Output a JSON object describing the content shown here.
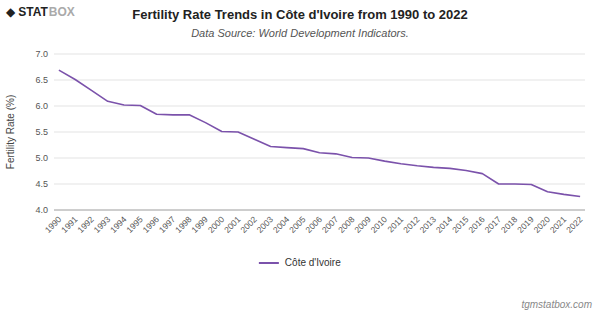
{
  "chart_data": {
    "type": "line",
    "title": "Fertility Rate Trends in Côte d'Ivoire from 1990 to 2022",
    "subtitle": "Data Source: World Development Indicators.",
    "y_label": "Fertility Rate (%)",
    "annotations": [
      "◆",
      "STAT",
      "BOX",
      "tgmstatbox.com"
    ],
    "x": [
      1990,
      1991,
      1992,
      1993,
      1994,
      1995,
      1996,
      1997,
      1998,
      1999,
      2000,
      2001,
      2002,
      2003,
      2004,
      2005,
      2006,
      2007,
      2008,
      2009,
      2010,
      2011,
      2012,
      2013,
      2014,
      2015,
      2016,
      2017,
      2018,
      2019,
      2020,
      2021,
      2022
    ],
    "series": [
      {
        "name": "Côte d'Ivoire",
        "color": "#7B52AB",
        "values": [
          6.69,
          6.51,
          6.3,
          6.09,
          6.02,
          6.01,
          5.84,
          5.83,
          5.83,
          5.68,
          5.51,
          5.5,
          5.36,
          5.22,
          5.2,
          5.18,
          5.1,
          5.08,
          5.01,
          5.0,
          4.94,
          4.89,
          4.85,
          4.82,
          4.8,
          4.76,
          4.7,
          4.5,
          4.5,
          4.49,
          4.35,
          4.3,
          4.26
        ]
      }
    ],
    "xlim": [
      1989.7,
      2022.3
    ],
    "xticks": [
      1990,
      1991,
      1992,
      1993,
      1994,
      1995,
      1996,
      1997,
      1998,
      1999,
      2000,
      2001,
      2002,
      2003,
      2004,
      2005,
      2006,
      2007,
      2008,
      2009,
      2010,
      2011,
      2012,
      2013,
      2014,
      2015,
      2016,
      2017,
      2018,
      2019,
      2020,
      2021,
      2022
    ],
    "ylim": [
      4.0,
      7.0
    ],
    "yticks": [
      {
        "value": 4.0,
        "label": "4.0"
      },
      4.5,
      {
        "value": 5.0,
        "label": "5.0"
      },
      5.5,
      {
        "value": 6.0,
        "label": "6.0"
      },
      6.5,
      {
        "value": 7.0,
        "label": "7.0"
      }
    ],
    "grid": true,
    "legend": "bottom"
  }
}
